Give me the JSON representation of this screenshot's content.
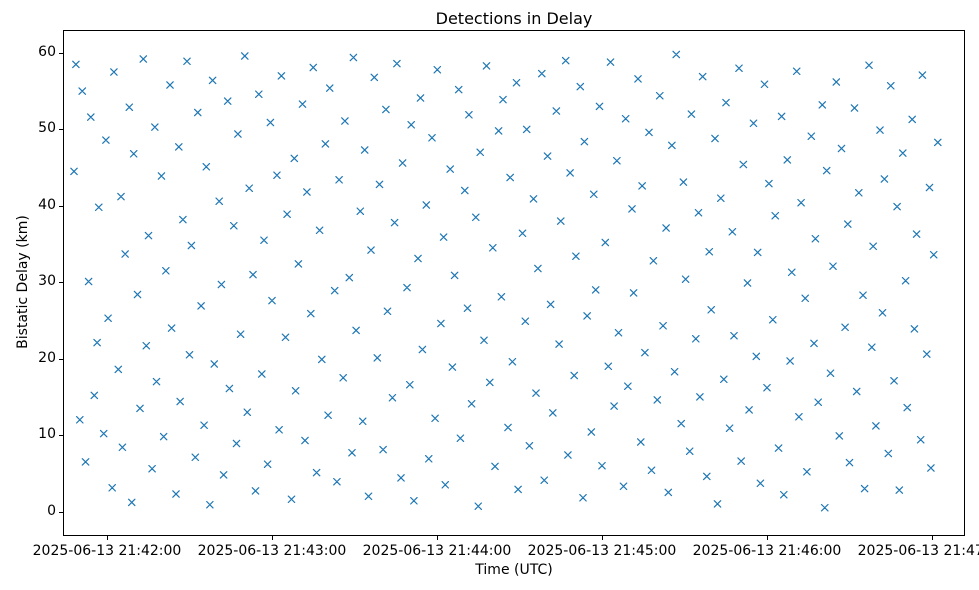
{
  "chart_data": {
    "type": "scatter",
    "title": "Detections in Delay",
    "xlabel": "Time (UTC)",
    "ylabel": "Bistatic Delay (km)",
    "marker": "x",
    "marker_color": "#1f77b4",
    "legend": "none",
    "grid": false,
    "xlim_seconds_from_2025-06-13T21:42:00": [
      -16,
      312
    ],
    "xlim": [
      -16,
      312
    ],
    "ylim": [
      -3.2,
      63
    ],
    "x_ticks": [
      {
        "value": 0,
        "label": "2025-06-13 21:42:00"
      },
      {
        "value": 60,
        "label": "2025-06-13 21:43:00"
      },
      {
        "value": 120,
        "label": "2025-06-13 21:44:00"
      },
      {
        "value": 180,
        "label": "2025-06-13 21:45:00"
      },
      {
        "value": 240,
        "label": "2025-06-13 21:46:00"
      },
      {
        "value": 300,
        "label": "2025-06-13 21:47:00"
      }
    ],
    "y_ticks": [
      0,
      10,
      20,
      30,
      40,
      50,
      60
    ],
    "x_units": "seconds after 2025-06-13 21:42:00 UTC",
    "y_units": "km",
    "x": [
      -12.0,
      -11.3,
      -9.9,
      -9.0,
      -7.8,
      -6.7,
      -5.9,
      -4.6,
      -3.6,
      -3.0,
      -1.2,
      -0.4,
      0.4,
      1.9,
      2.5,
      4.1,
      5.1,
      5.6,
      6.6,
      8.1,
      9.0,
      9.7,
      11.1,
      12.0,
      13.2,
      14.3,
      15.1,
      16.4,
      17.4,
      18.0,
      19.8,
      20.6,
      21.4,
      22.9,
      23.5,
      25.1,
      26.1,
      26.6,
      27.6,
      29.1,
      30.0,
      30.7,
      32.1,
      33.0,
      34.2,
      35.3,
      36.1,
      37.4,
      38.4,
      39.0,
      40.8,
      41.6,
      42.4,
      43.9,
      44.5,
      46.1,
      47.1,
      47.6,
      48.6,
      50.1,
      51.0,
      51.7,
      53.1,
      54.0,
      55.2,
      56.3,
      57.1,
      58.4,
      59.4,
      60.0,
      61.8,
      62.6,
      63.4,
      64.9,
      65.5,
      67.1,
      68.1,
      68.6,
      69.6,
      71.1,
      72.0,
      72.7,
      74.1,
      75.0,
      76.2,
      77.3,
      78.1,
      79.4,
      80.4,
      81.0,
      82.8,
      83.6,
      84.4,
      85.9,
      86.5,
      88.1,
      89.1,
      89.6,
      90.6,
      92.1,
      93.0,
      93.7,
      95.1,
      96.0,
      97.2,
      98.3,
      99.1,
      100.4,
      101.4,
      102.0,
      103.8,
      104.6,
      105.4,
      106.9,
      107.5,
      109.1,
      110.1,
      110.6,
      111.6,
      113.1,
      114.0,
      114.7,
      116.1,
      117.0,
      118.2,
      119.3,
      120.1,
      121.4,
      122.4,
      123.0,
      124.8,
      125.6,
      126.4,
      127.9,
      128.5,
      130.1,
      131.1,
      131.6,
      132.6,
      134.1,
      135.0,
      135.7,
      137.1,
      138.0,
      139.2,
      140.3,
      141.1,
      142.4,
      143.4,
      144.0,
      145.8,
      146.6,
      147.4,
      148.9,
      149.5,
      151.1,
      152.1,
      152.6,
      153.6,
      155.1,
      156.0,
      156.7,
      158.1,
      159.0,
      160.2,
      161.3,
      162.1,
      163.4,
      164.4,
      165.0,
      166.8,
      167.6,
      168.4,
      169.9,
      170.5,
      172.1,
      173.1,
      173.6,
      174.6,
      176.1,
      177.0,
      177.7,
      179.1,
      180.0,
      181.2,
      182.3,
      183.1,
      184.4,
      185.4,
      186.0,
      187.8,
      188.6,
      189.4,
      190.9,
      191.5,
      193.1,
      194.1,
      194.6,
      195.6,
      197.1,
      198.0,
      198.7,
      200.1,
      201.0,
      202.2,
      203.3,
      204.1,
      205.4,
      206.4,
      207.0,
      208.8,
      209.6,
      210.4,
      211.9,
      212.5,
      214.1,
      215.1,
      215.6,
      216.6,
      218.1,
      219.0,
      219.7,
      221.1,
      222.0,
      223.2,
      224.3,
      225.1,
      226.4,
      227.4,
      228.0,
      229.8,
      230.6,
      231.4,
      232.9,
      233.5,
      235.1,
      236.1,
      236.6,
      237.6,
      239.1,
      240.0,
      240.7,
      242.1,
      243.0,
      244.2,
      245.3,
      246.1,
      247.4,
      248.4,
      249.0,
      250.8,
      251.6,
      252.4,
      253.9,
      254.5,
      256.1,
      257.1,
      257.6,
      258.6,
      260.1,
      261.0,
      261.7,
      263.1,
      264.0,
      265.2,
      266.3,
      267.1,
      268.4,
      269.4,
      270.0,
      271.8,
      272.6,
      273.4,
      274.9,
      275.5,
      277.1,
      278.1,
      278.6,
      279.6,
      281.1,
      282.0,
      282.7,
      284.1,
      285.0,
      286.2,
      287.3,
      288.1,
      289.4,
      290.4,
      291.0,
      292.8,
      293.6,
      294.4,
      295.9,
      296.5,
      298.1,
      299.1,
      299.6,
      300.6,
      302.1
    ],
    "y": [
      44.5,
      58.5,
      12.0,
      55.0,
      6.5,
      30.1,
      51.6,
      15.2,
      22.1,
      39.8,
      10.2,
      48.6,
      25.3,
      3.1,
      57.5,
      18.6,
      41.2,
      8.4,
      33.7,
      52.9,
      1.2,
      46.8,
      28.4,
      13.5,
      59.2,
      21.7,
      36.1,
      5.6,
      50.3,
      17.0,
      43.9,
      9.8,
      31.5,
      55.8,
      24.0,
      2.3,
      47.7,
      14.4,
      38.2,
      58.9,
      20.5,
      34.8,
      7.1,
      52.2,
      26.9,
      11.3,
      45.1,
      0.9,
      56.4,
      19.3,
      40.6,
      29.7,
      4.8,
      53.7,
      16.1,
      37.4,
      8.9,
      49.4,
      23.2,
      59.6,
      13.0,
      42.3,
      31.0,
      2.7,
      54.6,
      18.0,
      35.5,
      6.2,
      50.9,
      27.6,
      44.0,
      10.7,
      57.0,
      22.8,
      38.9,
      1.6,
      46.2,
      15.8,
      32.4,
      53.3,
      9.3,
      41.8,
      25.9,
      58.1,
      5.1,
      36.8,
      19.9,
      48.1,
      12.6,
      55.4,
      28.9,
      3.9,
      43.4,
      17.5,
      51.1,
      30.6,
      7.7,
      59.4,
      23.7,
      39.3,
      11.8,
      47.3,
      2.0,
      34.2,
      56.8,
      20.1,
      42.8,
      8.1,
      52.6,
      26.2,
      14.9,
      37.8,
      58.6,
      4.4,
      45.6,
      29.3,
      16.6,
      50.6,
      1.4,
      33.1,
      54.1,
      21.2,
      40.1,
      6.9,
      48.9,
      12.2,
      57.8,
      24.6,
      35.9,
      3.5,
      44.8,
      18.9,
      30.9,
      55.2,
      9.6,
      42.0,
      26.6,
      51.9,
      14.1,
      38.5,
      0.7,
      47.0,
      22.4,
      58.3,
      16.9,
      34.5,
      5.9,
      49.8,
      28.1,
      53.9,
      11.0,
      43.7,
      19.6,
      56.1,
      2.9,
      36.4,
      24.9,
      50.0,
      8.6,
      40.9,
      15.5,
      31.8,
      57.3,
      4.1,
      46.5,
      27.1,
      12.9,
      52.4,
      21.9,
      38.0,
      59.0,
      7.4,
      44.3,
      17.8,
      33.4,
      55.6,
      1.8,
      48.4,
      25.6,
      10.4,
      41.5,
      29.0,
      53.0,
      6.0,
      35.2,
      19.0,
      58.8,
      13.8,
      45.9,
      23.4,
      3.3,
      51.4,
      16.4,
      39.6,
      28.6,
      56.6,
      9.1,
      42.6,
      20.8,
      49.6,
      5.4,
      32.8,
      14.6,
      54.4,
      24.3,
      37.1,
      2.5,
      47.9,
      18.3,
      59.8,
      11.5,
      43.1,
      30.4,
      7.9,
      52.0,
      22.6,
      39.1,
      15.0,
      56.9,
      4.6,
      34.0,
      26.4,
      48.8,
      1.0,
      41.0,
      17.3,
      53.5,
      10.9,
      36.6,
      23.0,
      58.0,
      6.6,
      45.4,
      29.9,
      13.3,
      50.8,
      20.3,
      33.9,
      3.7,
      55.9,
      16.2,
      42.9,
      25.1,
      38.7,
      8.3,
      51.7,
      2.2,
      46.0,
      19.7,
      31.3,
      57.6,
      12.4,
      40.4,
      27.9,
      5.2,
      49.1,
      22.0,
      35.7,
      14.3,
      53.2,
      0.5,
      44.6,
      18.1,
      32.1,
      56.2,
      9.9,
      47.5,
      24.1,
      37.6,
      6.4,
      52.8,
      15.7,
      41.7,
      28.3,
      3.0,
      58.4,
      21.5,
      34.7,
      11.2,
      49.9,
      26.0,
      43.5,
      7.6,
      55.7,
      17.1,
      39.9,
      2.8,
      46.9,
      30.2,
      13.6,
      51.3,
      23.9,
      36.3,
      9.4,
      57.1,
      20.6,
      42.4,
      5.7,
      33.6,
      48.3
    ]
  }
}
